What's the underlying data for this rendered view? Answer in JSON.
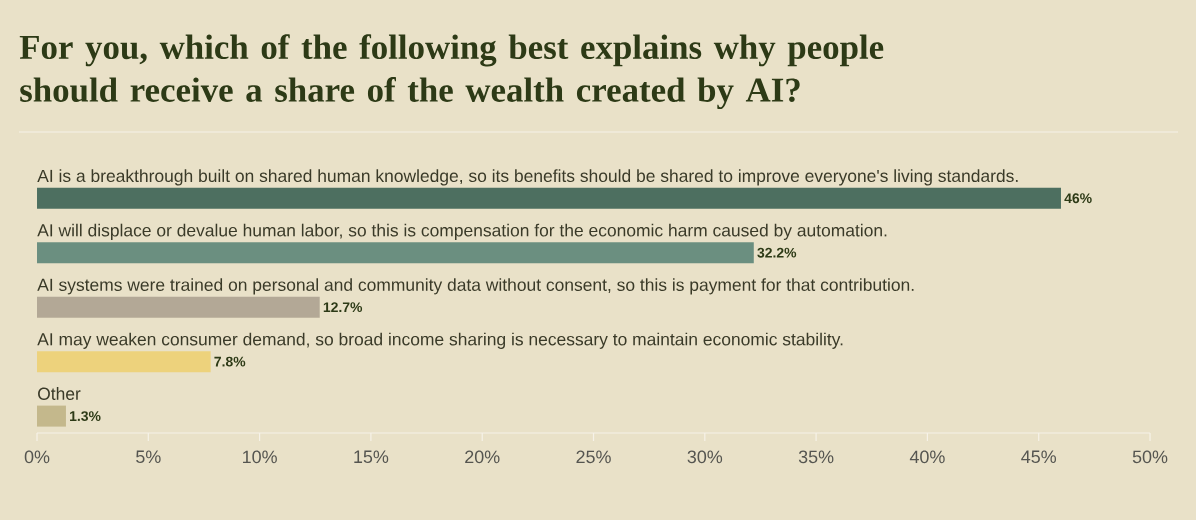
{
  "chart_data": {
    "type": "bar",
    "orientation": "horizontal",
    "title": "For you, which of the following best explains why people should receive a share of the wealth created by AI?",
    "categories": [
      "AI is a breakthrough built on shared human knowledge, so its benefits should be shared to improve everyone's living standards.",
      "AI will displace or devalue human labor, so this is compensation for the economic harm caused by automation.",
      "AI systems were trained on personal and community data without consent, so this is payment for that contribution.",
      "AI may weaken consumer demand, so broad income sharing is necessary to maintain economic stability.",
      "Other"
    ],
    "values": [
      46,
      32.2,
      12.7,
      7.8,
      1.3
    ],
    "value_labels": [
      "46%",
      "32.2%",
      "12.7%",
      "7.8%",
      "1.3%"
    ],
    "colors": [
      "#4d6f60",
      "#6b8f80",
      "#b3a896",
      "#edd27c",
      "#c4b88c"
    ],
    "xlim": [
      0,
      50
    ],
    "xticks": [
      {
        "value": 0,
        "label": "0%"
      },
      {
        "value": 5,
        "label": "5%"
      },
      {
        "value": 10,
        "label": "10%"
      },
      {
        "value": 15,
        "label": "15%"
      },
      {
        "value": 20,
        "label": "20%"
      },
      {
        "value": 25,
        "label": "25%"
      },
      {
        "value": 30,
        "label": "30%"
      },
      {
        "value": 35,
        "label": "35%"
      },
      {
        "value": 40,
        "label": "40%"
      },
      {
        "value": 45,
        "label": "45%"
      },
      {
        "value": 50,
        "label": "50%"
      }
    ],
    "grid": false
  }
}
